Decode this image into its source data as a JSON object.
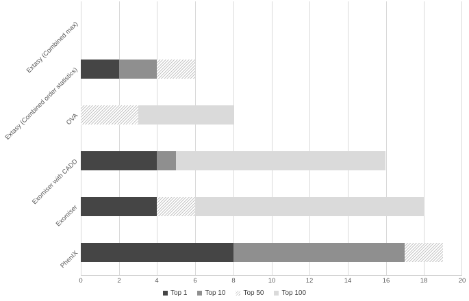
{
  "figure": {
    "background": "#ffffff"
  },
  "chart_data": {
    "type": "bar",
    "orientation": "horizontal",
    "stacked": true,
    "title": "",
    "xlabel": "",
    "ylabel": "",
    "xlim": [
      0,
      20
    ],
    "xtick_step": 2,
    "xticks": [
      0,
      2,
      4,
      6,
      8,
      10,
      12,
      14,
      16,
      18,
      20
    ],
    "grid": "vertical-major-on",
    "categories_top_to_bottom": [
      "Extasy (Combined max)",
      "Extasy (Combined order statistics)",
      "OVA",
      "Exomiser with CADD",
      "Exomiser",
      "PhenIX"
    ],
    "series": [
      {
        "name": "Top 1",
        "fill": "solid",
        "color": "#454545",
        "values": [
          0,
          2,
          0,
          4,
          4,
          8
        ]
      },
      {
        "name": "Top 10",
        "fill": "solid",
        "color": "#8f8f8f",
        "values": [
          0,
          2,
          0,
          1,
          0,
          9
        ]
      },
      {
        "name": "Top 50",
        "fill": "hatch",
        "color": "#c4c4c4",
        "values": [
          0,
          2,
          3,
          0,
          2,
          2
        ]
      },
      {
        "name": "Top 100",
        "fill": "solid",
        "color": "#dadada",
        "values": [
          0,
          0,
          5,
          11,
          12,
          0
        ]
      }
    ],
    "stack_totals": [
      0,
      6,
      8,
      16,
      18,
      19
    ],
    "legend": {
      "position": "bottom",
      "entries": [
        "Top 1",
        "Top 10",
        "Top 50",
        "Top 100"
      ]
    },
    "colors": {
      "gridline": "#d9d9d9",
      "axis_line": "#c9c9c9",
      "tick_text": "#595959",
      "legend_text": "#404040"
    }
  }
}
